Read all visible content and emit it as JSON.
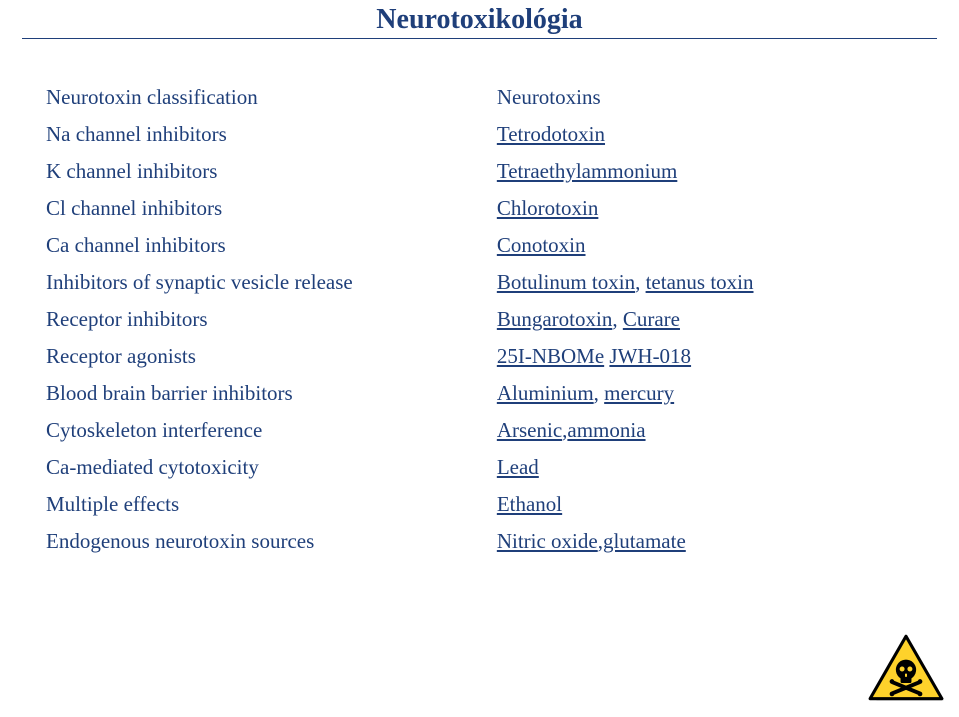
{
  "page": {
    "title": "Neurotoxikológia",
    "title_color": "#1f3f7a",
    "title_fontsize": 28,
    "rule_color": "#1f3f7a",
    "background_color": "#ffffff"
  },
  "table": {
    "header_left": "Neurotoxin classification",
    "header_right": "Neurotoxins",
    "body_fontsize": 21,
    "text_color": "#1f3f7a",
    "link_color": "#1f3f7a",
    "rows": [
      {
        "left": "Na channel inhibitors",
        "right": [
          {
            "text": "Tetrodotoxin",
            "link": true
          }
        ]
      },
      {
        "left": "K channel inhibitors",
        "right": [
          {
            "text": "Tetraethylammonium",
            "link": true
          }
        ]
      },
      {
        "left": "Cl channel inhibitors",
        "right": [
          {
            "text": "Chlorotoxin",
            "link": true
          }
        ]
      },
      {
        "left": "Ca channel inhibitors",
        "right": [
          {
            "text": "Conotoxin",
            "link": true
          }
        ]
      },
      {
        "left": "Inhibitors of synaptic vesicle release",
        "right": [
          {
            "text": "Botulinum toxin",
            "link": true
          },
          {
            "text": ", ",
            "link": false
          },
          {
            "text": "tetanus toxin",
            "link": true
          }
        ]
      },
      {
        "left": "Receptor inhibitors",
        "right": [
          {
            "text": "Bungarotoxin",
            "link": true
          },
          {
            "text": ", ",
            "link": false
          },
          {
            "text": "Curare",
            "link": true
          }
        ]
      },
      {
        "left": "Receptor agonists",
        "right": [
          {
            "text": "25I-NBOMe",
            "link": true
          },
          {
            "text": " ",
            "link": false
          },
          {
            "text": "JWH-018",
            "link": true
          }
        ]
      },
      {
        "left": "Blood brain barrier inhibitors",
        "right": [
          {
            "text": "Aluminium",
            "link": true
          },
          {
            "text": ", ",
            "link": false
          },
          {
            "text": "mercury",
            "link": true
          }
        ]
      },
      {
        "left": "Cytoskeleton interference",
        "right": [
          {
            "text": "Arsenic",
            "link": true
          },
          {
            "text": ",",
            "link": false
          },
          {
            "text": "ammonia",
            "link": true
          }
        ]
      },
      {
        "left": "Ca-mediated cytotoxicity",
        "right": [
          {
            "text": "Lead",
            "link": true
          }
        ]
      },
      {
        "left": "Multiple effects",
        "right": [
          {
            "text": "Ethanol",
            "link": true
          }
        ]
      },
      {
        "left": "Endogenous neurotoxin sources",
        "right": [
          {
            "text": "Nitric oxide",
            "link": true
          },
          {
            "text": ",",
            "link": false
          },
          {
            "text": "glutamate",
            "link": true
          }
        ]
      }
    ]
  },
  "icon": {
    "name": "toxic-hazard-icon",
    "triangle_fill": "#fed22b",
    "triangle_border": "#000000",
    "skull_fill": "#000000",
    "shadow_color": "#999999"
  }
}
